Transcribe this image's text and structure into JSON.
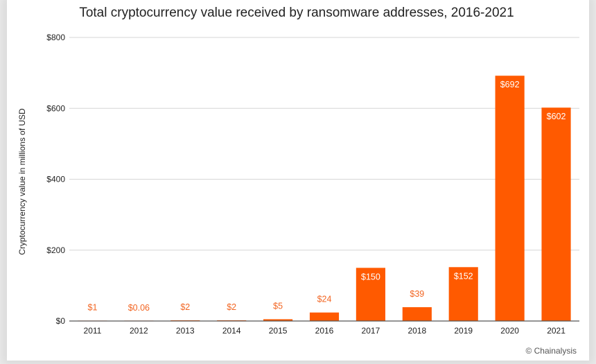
{
  "chart_data": {
    "type": "bar",
    "title": "Total cryptocurrency value received by ransomware addresses, 2016-2021",
    "xlabel": "",
    "ylabel": "Cryptocurrency value in millions of  USD",
    "ylim": [
      0,
      800
    ],
    "yticks": [
      0,
      200,
      400,
      600,
      800
    ],
    "ytick_labels": [
      "$0",
      "$200",
      "$400",
      "$600",
      "$800"
    ],
    "grid": true,
    "legend": "none",
    "bar_color": "#ff5a00",
    "categories": [
      "2011",
      "2012",
      "2013",
      "2014",
      "2015",
      "2016",
      "2017",
      "2018",
      "2019",
      "2020",
      "2021"
    ],
    "values": [
      1,
      0.06,
      2,
      2,
      5,
      24,
      150,
      39,
      152,
      692,
      602
    ],
    "data_labels": [
      "$1",
      "$0.06",
      "$2",
      "$2",
      "$5",
      "$24",
      "$150",
      "$39",
      "$152",
      "$692",
      "$602"
    ]
  },
  "credit": "© Chainalysis"
}
